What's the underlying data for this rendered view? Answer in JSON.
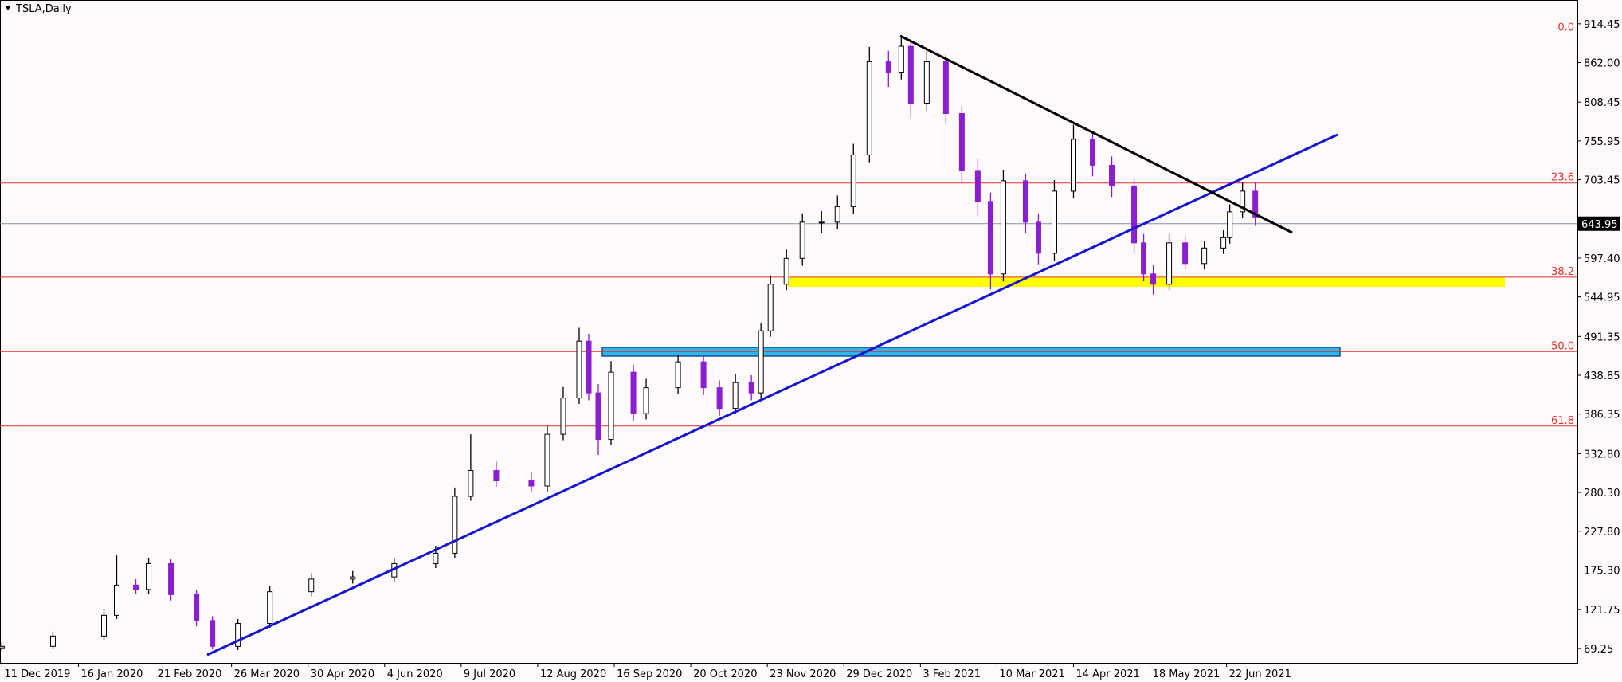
{
  "chart_data": {
    "type": "candlestick",
    "title": "TSLA,Daily",
    "x": [
      0,
      16,
      32,
      36,
      42,
      46,
      53,
      61,
      66,
      74,
      84,
      97,
      110,
      123,
      136,
      142,
      147,
      155,
      166,
      171,
      176,
      181,
      184,
      187,
      191,
      198,
      202,
      212,
      220,
      225,
      230,
      235,
      238,
      241,
      246,
      251,
      257,
      262,
      267,
      272,
      278,
      282,
      285,
      290,
      296,
      301,
      306,
      310,
      314,
      321,
      325,
      330,
      336,
      342,
      348,
      355,
      358,
      361,
      366,
      371,
      377,
      383,
      385,
      389,
      393
    ],
    "open": [
      70,
      72,
      86,
      114,
      155,
      149,
      184,
      142,
      107,
      72,
      103,
      146,
      163,
      166,
      184,
      198,
      275,
      310,
      296,
      289,
      359,
      408,
      485,
      415,
      352,
      443,
      387,
      422,
      457,
      422,
      394,
      429,
      415,
      499,
      562,
      597,
      646,
      646,
      667,
      737,
      863,
      849,
      884,
      807,
      863,
      793,
      716,
      674,
      576,
      702,
      646,
      604,
      688,
      758,
      723,
      695,
      618,
      576,
      562,
      618,
      590,
      611,
      625,
      660,
      688
    ],
    "high": [
      78,
      92,
      122,
      195,
      163,
      192,
      190,
      148,
      113,
      109,
      154,
      171,
      174,
      192,
      208,
      287,
      359,
      322,
      308,
      371,
      423,
      503,
      495,
      427,
      458,
      453,
      434,
      467,
      465,
      432,
      441,
      439,
      509,
      574,
      609,
      658,
      661,
      682,
      752,
      883,
      878,
      898,
      894,
      878,
      873,
      803,
      731,
      686,
      717,
      712,
      658,
      703,
      778,
      768,
      735,
      705,
      630,
      588,
      630,
      628,
      621,
      635,
      670,
      700,
      700
    ],
    "low": [
      66,
      68,
      81,
      109,
      143,
      143,
      134,
      99,
      68,
      67,
      97,
      140,
      157,
      160,
      178,
      192,
      269,
      288,
      281,
      281,
      351,
      400,
      405,
      331,
      344,
      377,
      379,
      414,
      412,
      384,
      386,
      405,
      407,
      491,
      554,
      587,
      631,
      636,
      657,
      727,
      829,
      839,
      787,
      797,
      778,
      701,
      654,
      555,
      566,
      631,
      589,
      594,
      678,
      708,
      680,
      603,
      566,
      548,
      554,
      582,
      582,
      603,
      617,
      652,
      641
    ],
    "close": [
      72,
      86,
      114,
      155,
      149,
      184,
      142,
      107,
      72,
      103,
      146,
      163,
      166,
      184,
      198,
      275,
      310,
      296,
      289,
      359,
      408,
      485,
      415,
      352,
      443,
      387,
      422,
      457,
      422,
      394,
      429,
      415,
      499,
      562,
      597,
      646,
      646,
      667,
      737,
      863,
      849,
      884,
      807,
      863,
      793,
      716,
      674,
      576,
      702,
      646,
      604,
      688,
      758,
      723,
      695,
      618,
      576,
      562,
      618,
      590,
      611,
      625,
      660,
      688,
      653
    ],
    "up_color": "#ffffff",
    "down_color": "#8a1fd0",
    "xlim": [
      -0.6,
      494
    ],
    "xticks": [
      {
        "value": 0,
        "label": "11 Dec 2019"
      },
      {
        "value": 24,
        "label": "16 Jan 2020"
      },
      {
        "value": 48,
        "label": "21 Feb 2020"
      },
      {
        "value": 72,
        "label": "26 Mar 2020"
      },
      {
        "value": 96,
        "label": "30 Apr 2020"
      },
      {
        "value": 120,
        "label": "4 Jun 2020"
      },
      {
        "value": 144,
        "label": "9 Jul 2020"
      },
      {
        "value": 168,
        "label": "12 Aug 2020"
      },
      {
        "value": 192,
        "label": "16 Sep 2020"
      },
      {
        "value": 216,
        "label": "20 Oct 2020"
      },
      {
        "value": 240,
        "label": "23 Nov 2020"
      },
      {
        "value": 264,
        "label": "29 Dec 2020"
      },
      {
        "value": 288,
        "label": "3 Feb 2021"
      },
      {
        "value": 312,
        "label": "10 Mar 2021"
      },
      {
        "value": 336,
        "label": "14 Apr 2021"
      },
      {
        "value": 360,
        "label": "18 May 2021"
      },
      {
        "value": 384,
        "label": "22 Jun 2021"
      }
    ],
    "ylim": [
      49.7,
      939.6
    ],
    "yticks": [
      914.45,
      {
        "value": 862,
        "label": "862.00"
      },
      808.45,
      755.95,
      703.45,
      {
        "value": 597.4,
        "label": "597.40"
      },
      544.95,
      491.35,
      438.85,
      386.35,
      {
        "value": 332.8,
        "label": "332.80"
      },
      {
        "value": 280.3,
        "label": "280.30"
      },
      {
        "value": 227.8,
        "label": "227.80"
      },
      {
        "value": 175.3,
        "label": "175.30"
      },
      121.75,
      69.25
    ],
    "last_price": 643.95,
    "fib_levels": [
      {
        "value": 901.9,
        "label": "0.0"
      },
      {
        "value": 699.0,
        "label": "23.6"
      },
      {
        "value": 571.6,
        "label": "38.2"
      },
      {
        "value": 470.9,
        "label": "50.0"
      },
      {
        "value": 370.1,
        "label": "61.8"
      }
    ],
    "fib_color": "#e03030"
  }
}
